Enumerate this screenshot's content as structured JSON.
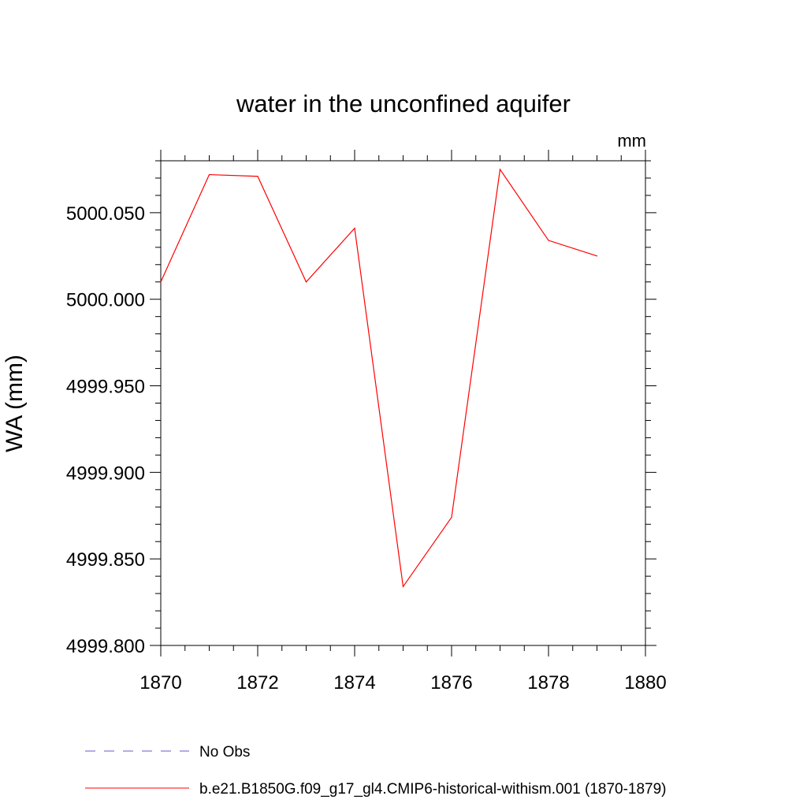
{
  "chart_data": {
    "type": "line",
    "title": "water in the unconfined aquifer",
    "units_label": "mm",
    "xlabel": "",
    "ylabel": "WA  (mm)",
    "xlim": [
      1870,
      1880
    ],
    "ylim": [
      4999.8,
      5000.08
    ],
    "x_ticks": [
      1870,
      1872,
      1874,
      1876,
      1878,
      1880
    ],
    "x_tick_labels": [
      "1870",
      "1872",
      "1874",
      "1876",
      "1878",
      "1880"
    ],
    "y_ticks": [
      4999.8,
      4999.85,
      4999.9,
      4999.95,
      5000.0,
      5000.05
    ],
    "y_tick_labels": [
      "4999.800",
      "4999.850",
      "4999.900",
      "4999.950",
      "5000.000",
      "5000.050"
    ],
    "grid": false,
    "legend_position": "bottom",
    "series": [
      {
        "name": "No Obs",
        "color": "#6a5acd",
        "style": "dashed",
        "x": [],
        "y": []
      },
      {
        "name": "b.e21.B1850G.f09_g17_gl4.CMIP6-historical-withism.001 (1870-1879)",
        "color": "#ff0000",
        "style": "solid",
        "x": [
          1870,
          1871,
          1872,
          1873,
          1874,
          1875,
          1876,
          1877,
          1878,
          1879
        ],
        "y": [
          5000.01,
          5000.072,
          5000.071,
          5000.01,
          5000.041,
          4999.834,
          4999.874,
          5000.075,
          5000.034,
          5000.025
        ]
      }
    ]
  }
}
